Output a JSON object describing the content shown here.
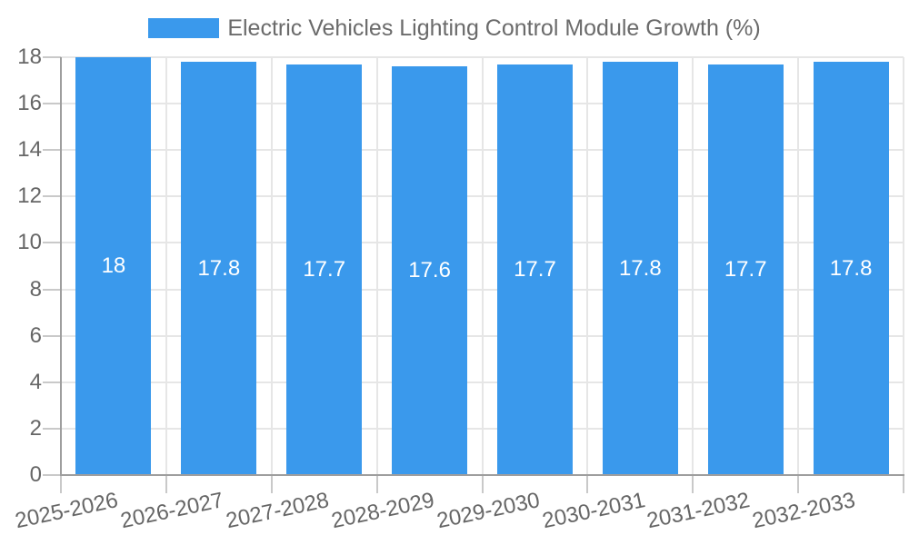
{
  "chart_data": {
    "type": "bar",
    "title": "Electric Vehicles Lighting Control Module Growth (%)",
    "categories": [
      "2025-2026",
      "2026-2027",
      "2027-2028",
      "2028-2029",
      "2029-2030",
      "2030-2031",
      "2031-2032",
      "2032-2033"
    ],
    "values": [
      18,
      17.8,
      17.7,
      17.6,
      17.7,
      17.8,
      17.7,
      17.8
    ],
    "value_labels": [
      "18",
      "17.8",
      "17.7",
      "17.6",
      "17.7",
      "17.8",
      "17.7",
      "17.8"
    ],
    "xlabel": "",
    "ylabel": "",
    "ylim": [
      0,
      18
    ],
    "yticks": [
      0,
      2,
      4,
      6,
      8,
      10,
      12,
      14,
      16,
      18
    ],
    "grid": true,
    "legend_position": "top",
    "colors": {
      "bar": "#3a99ec",
      "bar_label": "#ffffff",
      "grid": "#e6e6e6",
      "tick_mark": "#c9c9c9",
      "axis_line": "#9e9e9e",
      "tick_text": "#666666",
      "legend_text": "#6b6b6b"
    }
  }
}
